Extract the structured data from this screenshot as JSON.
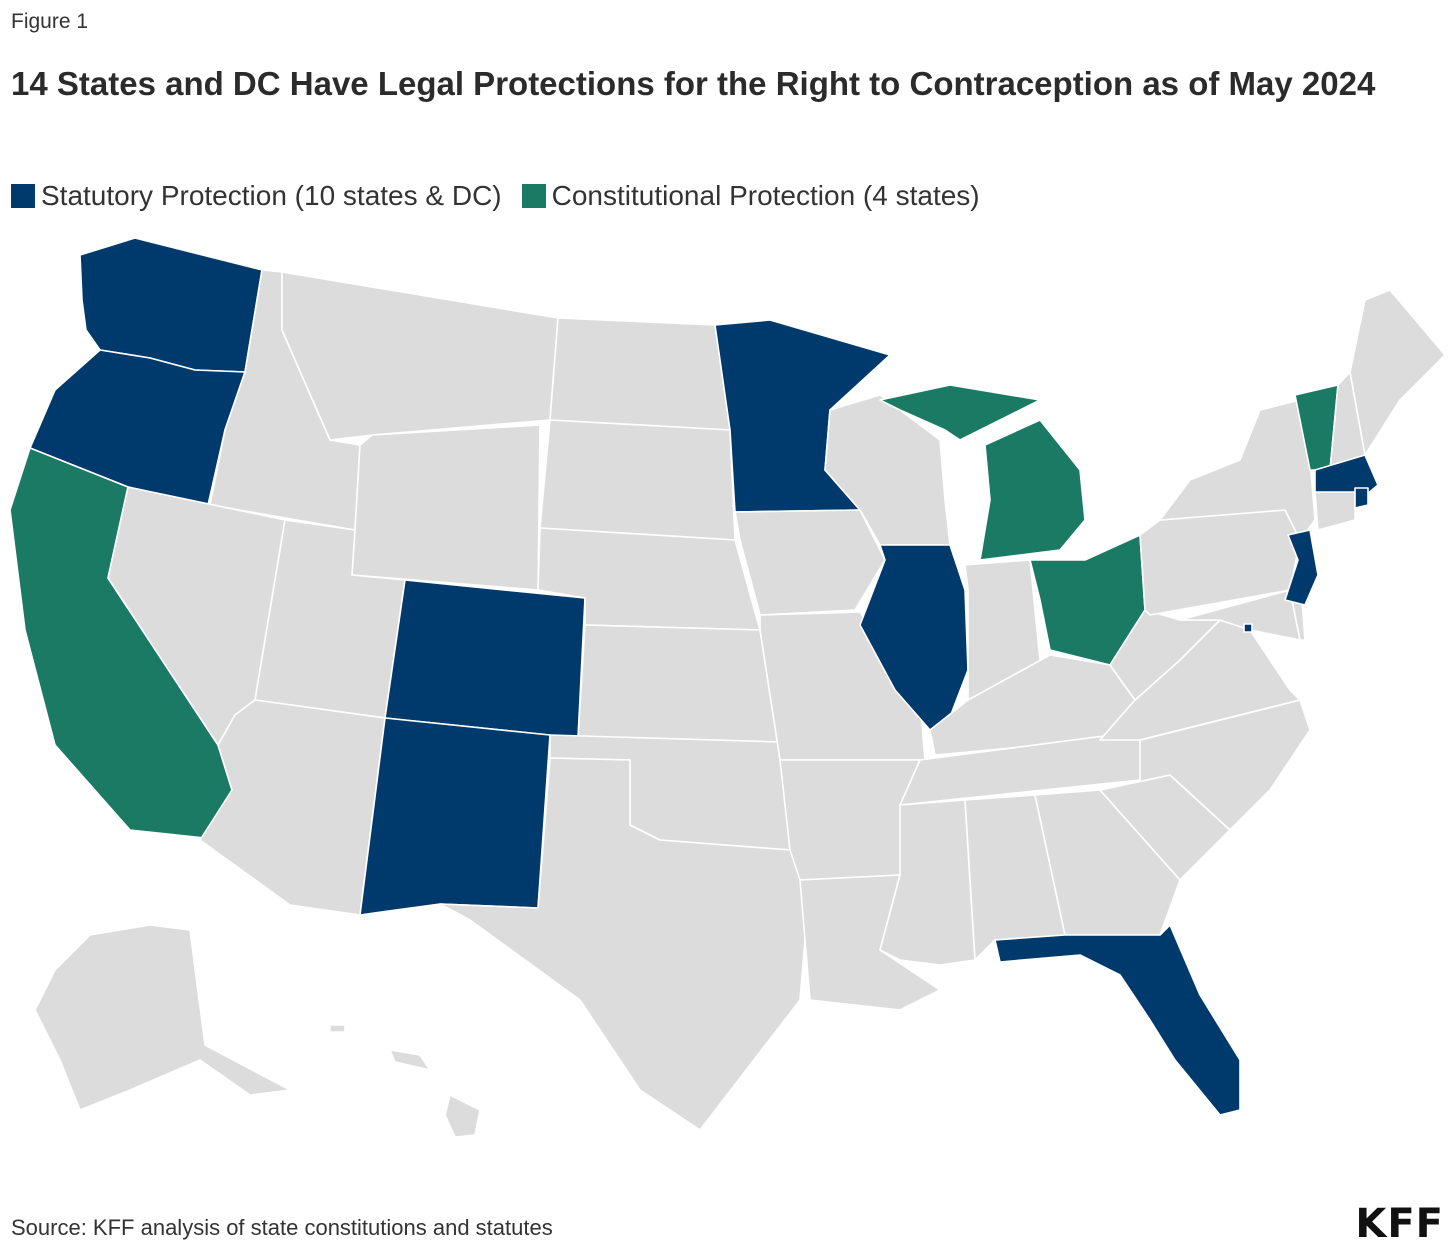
{
  "figure_label": "Figure 1",
  "title": "14 States and DC Have Legal Protections for the Right to Contraception as of May 2024",
  "legend": [
    {
      "label": "Statutory Protection (10 states & DC)",
      "color": "#003a6c"
    },
    {
      "label": "Constitutional Protection (4 states)",
      "color": "#1b7a63"
    }
  ],
  "colors": {
    "statutory": "#003a6c",
    "constitutional": "#1b7a63",
    "none": "#dcdcdc"
  },
  "states": {
    "statutory": [
      "WA",
      "OR",
      "MN",
      "CO",
      "NM",
      "IL",
      "MA",
      "RI",
      "NJ",
      "FL",
      "DC"
    ],
    "constitutional": [
      "CA",
      "MI",
      "OH",
      "VT"
    ]
  },
  "source": "Source: KFF analysis of state constitutions and statutes",
  "logo": "KFF"
}
